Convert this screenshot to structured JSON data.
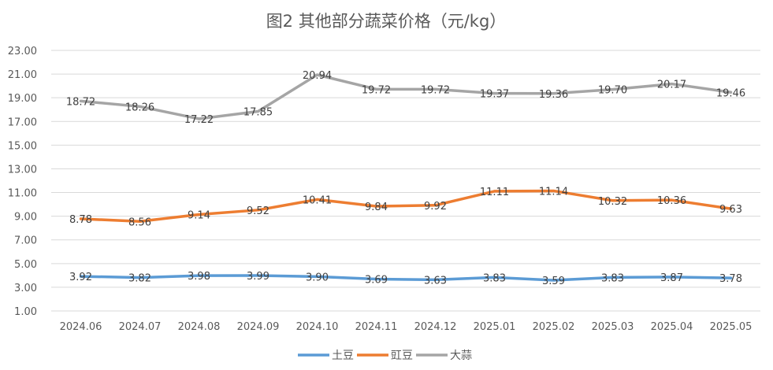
{
  "chart_data": {
    "type": "line",
    "title": "图2  其他部分蔬菜价格（元/kg）",
    "categories": [
      "2024.06",
      "2024.07",
      "2024.08",
      "2024.09",
      "2024.10",
      "2024.11",
      "2024.12",
      "2025.01",
      "2025.02",
      "2025.03",
      "2025.04",
      "2025.05"
    ],
    "ylim": [
      1,
      23
    ],
    "yticks": [
      "1.00",
      "3.00",
      "5.00",
      "7.00",
      "9.00",
      "11.00",
      "13.00",
      "15.00",
      "17.00",
      "19.00",
      "21.00",
      "23.00"
    ],
    "grid": true,
    "legend_position": "bottom",
    "series": [
      {
        "name": "土豆",
        "color": "#5B9BD5",
        "values": [
          3.92,
          3.82,
          3.98,
          3.99,
          3.9,
          3.69,
          3.63,
          3.83,
          3.59,
          3.83,
          3.87,
          3.78
        ],
        "labels": [
          "3.92",
          "3.82",
          "3.98",
          "3.99",
          "3.90",
          "3.69",
          "3.63",
          "3.83",
          "3.59",
          "3.83",
          "3.87",
          "3.78"
        ]
      },
      {
        "name": "豇豆",
        "color": "#ED7D31",
        "values": [
          8.78,
          8.56,
          9.14,
          9.52,
          10.41,
          9.84,
          9.92,
          11.11,
          11.14,
          10.32,
          10.36,
          9.63
        ],
        "labels": [
          "8.78",
          "8.56",
          "9.14",
          "9.52",
          "10.41",
          "9.84",
          "9.92",
          "11.11",
          "11.14",
          "10.32",
          "10.36",
          "9.63"
        ]
      },
      {
        "name": "大蒜",
        "color": "#A5A5A5",
        "values": [
          18.72,
          18.26,
          17.22,
          17.85,
          20.94,
          19.72,
          19.72,
          19.37,
          19.36,
          19.7,
          20.17,
          19.46
        ],
        "labels": [
          "18.72",
          "18.26",
          "17.22",
          "17.85",
          "20.94",
          "19.72",
          "19.72",
          "19.37",
          "19.36",
          "19.70",
          "20.17",
          "19.46"
        ]
      }
    ]
  }
}
